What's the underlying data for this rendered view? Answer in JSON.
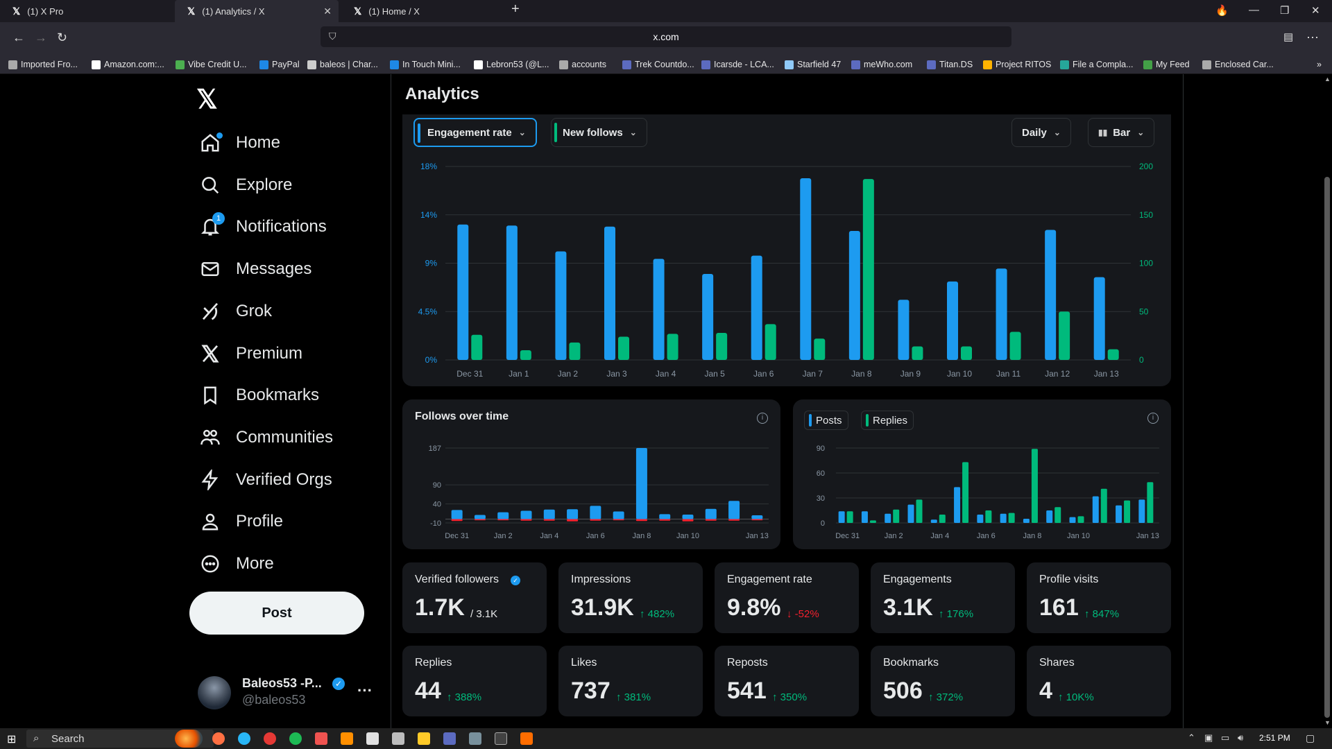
{
  "browser": {
    "tabs": [
      {
        "label": "(1) X Pro"
      },
      {
        "label": "(1) Analytics / X"
      },
      {
        "label": "(1) Home / X"
      }
    ],
    "url": "x.com",
    "bookmarks": [
      {
        "label": "Imported Fro...",
        "color": "#aaaaaa"
      },
      {
        "label": "Amazon.com:...",
        "color": "#ffffff"
      },
      {
        "label": "Vibe Credit U...",
        "color": "#4caf50"
      },
      {
        "label": "PayPal",
        "color": "#1e88e5"
      },
      {
        "label": "baleos | Char...",
        "color": "#cccccc"
      },
      {
        "label": "In Touch Mini...",
        "color": "#1e88e5"
      },
      {
        "label": "Lebron53 (@L...",
        "color": "#ffffff"
      },
      {
        "label": "accounts",
        "color": "#aaaaaa"
      },
      {
        "label": "Trek Countdo...",
        "color": "#5c6bc0"
      },
      {
        "label": "Icarsde - LCA...",
        "color": "#5c6bc0"
      },
      {
        "label": "Starfield 47",
        "color": "#90caf9"
      },
      {
        "label": "meWho.com",
        "color": "#5c6bc0"
      },
      {
        "label": "Titan.DS",
        "color": "#5c6bc0"
      },
      {
        "label": "Project RITOS",
        "color": "#ffb300"
      },
      {
        "label": "File a Compla...",
        "color": "#26a69a"
      },
      {
        "label": "My Feed",
        "color": "#43a047"
      },
      {
        "label": "Enclosed Car...",
        "color": "#aaaaaa"
      }
    ]
  },
  "sidebar": {
    "items": [
      {
        "label": "Home",
        "icon": "home-icon"
      },
      {
        "label": "Explore",
        "icon": "search-icon"
      },
      {
        "label": "Notifications",
        "icon": "bell-icon",
        "badge": "1"
      },
      {
        "label": "Messages",
        "icon": "mail-icon"
      },
      {
        "label": "Grok",
        "icon": "grok-icon"
      },
      {
        "label": "Premium",
        "icon": "x-premium-icon"
      },
      {
        "label": "Bookmarks",
        "icon": "bookmark-icon"
      },
      {
        "label": "Communities",
        "icon": "communities-icon"
      },
      {
        "label": "Verified Orgs",
        "icon": "lightning-icon"
      },
      {
        "label": "Profile",
        "icon": "person-icon"
      },
      {
        "label": "More",
        "icon": "more-circle-icon"
      }
    ],
    "post_label": "Post",
    "profile": {
      "name": "Baleos53 -P...",
      "handle": "@baleos53"
    }
  },
  "page": {
    "title": "Analytics",
    "controls": {
      "metric1": "Engagement rate",
      "metric2": "New follows",
      "interval": "Daily",
      "chart_type": "Bar"
    }
  },
  "colors": {
    "blue": "#1d9bf0",
    "green": "#00ba7c",
    "red": "#f4212e"
  },
  "chart_data": [
    {
      "type": "bar",
      "categories": [
        "Dec 31",
        "Jan 1",
        "Jan 2",
        "Jan 3",
        "Jan 4",
        "Jan 5",
        "Jan 6",
        "Jan 7",
        "Jan 8",
        "Jan 9",
        "Jan 10",
        "Jan 11",
        "Jan 12",
        "Jan 13"
      ],
      "left_axis": {
        "ticks": [
          "18%",
          "14%",
          "9%",
          "4.5%",
          "0%"
        ],
        "ylim": [
          0,
          18
        ]
      },
      "right_axis": {
        "ticks": [
          "200",
          "150",
          "100",
          "50",
          "0"
        ],
        "ylim": [
          0,
          200
        ]
      },
      "series": [
        {
          "values": [
            12.6,
            12.5,
            10.1,
            12.4,
            9.4,
            8.0,
            9.7,
            16.9,
            12.0,
            5.6,
            7.3,
            8.5,
            12.1,
            7.7
          ],
          "axis": "left",
          "color": "#1d9bf0"
        },
        {
          "values": [
            26,
            10,
            18,
            24,
            27,
            28,
            37,
            22,
            187,
            14,
            14,
            29,
            50,
            11
          ],
          "axis": "right",
          "color": "#00ba7c"
        }
      ]
    },
    {
      "type": "bar",
      "title": "Follows over time",
      "categories": [
        "Dec 31",
        "Jan 1",
        "Jan 2",
        "Jan 3",
        "Jan 4",
        "Jan 5",
        "Jan 6",
        "Jan 7",
        "Jan 8",
        "Jan 9",
        "Jan 10",
        "Jan 11",
        "Jan 12",
        "Jan 13"
      ],
      "x_ticks": [
        "Dec 31",
        "Jan 2",
        "Jan 4",
        "Jan 6",
        "Jan 8",
        "Jan 10",
        "Jan 13"
      ],
      "y_ticks": [
        "187",
        "90",
        "40",
        "-10"
      ],
      "ylim": [
        -10,
        187
      ],
      "series": [
        {
          "values": [
            24,
            11,
            18,
            22,
            25,
            26,
            35,
            20,
            187,
            13,
            12,
            27,
            48,
            10
          ],
          "color": "#1d9bf0"
        },
        {
          "values": [
            -5,
            -3,
            -3,
            -4,
            -4,
            -6,
            -4,
            -3,
            -5,
            -4,
            -6,
            -4,
            -4,
            -3
          ],
          "color": "#f4212e"
        }
      ]
    },
    {
      "type": "bar",
      "categories": [
        "Dec 31",
        "Jan 1",
        "Jan 2",
        "Jan 3",
        "Jan 4",
        "Jan 5",
        "Jan 6",
        "Jan 7",
        "Jan 8",
        "Jan 9",
        "Jan 10",
        "Jan 11",
        "Jan 12",
        "Jan 13"
      ],
      "x_ticks": [
        "Dec 31",
        "Jan 2",
        "Jan 4",
        "Jan 6",
        "Jan 8",
        "Jan 10",
        "Jan 13"
      ],
      "y_ticks": [
        "90",
        "60",
        "30",
        "0"
      ],
      "ylim": [
        0,
        90
      ],
      "series": [
        {
          "name": "Posts",
          "values": [
            14,
            14,
            11,
            22,
            4,
            43,
            10,
            11,
            5,
            15,
            7,
            32,
            21,
            28
          ],
          "color": "#1d9bf0"
        },
        {
          "name": "Replies",
          "values": [
            14,
            3,
            16,
            28,
            10,
            73,
            15,
            12,
            89,
            19,
            8,
            41,
            27,
            49
          ],
          "color": "#00ba7c"
        }
      ]
    }
  ],
  "metrics": [
    {
      "title": "Verified followers",
      "value": "1.7K",
      "sub": "/ 3.1K",
      "trend": "none"
    },
    {
      "title": "Impressions",
      "value": "31.9K",
      "sub": "↑ 482%",
      "trend": "up"
    },
    {
      "title": "Engagement rate",
      "value": "9.8%",
      "sub": "↓ -52%",
      "trend": "down"
    },
    {
      "title": "Engagements",
      "value": "3.1K",
      "sub": "↑ 176%",
      "trend": "up"
    },
    {
      "title": "Profile visits",
      "value": "161",
      "sub": "↑ 847%",
      "trend": "up"
    },
    {
      "title": "Replies",
      "value": "44",
      "sub": "↑ 388%",
      "trend": "up"
    },
    {
      "title": "Likes",
      "value": "737",
      "sub": "↑ 381%",
      "trend": "up"
    },
    {
      "title": "Reposts",
      "value": "541",
      "sub": "↑ 350%",
      "trend": "up"
    },
    {
      "title": "Bookmarks",
      "value": "506",
      "sub": "↑ 372%",
      "trend": "up"
    },
    {
      "title": "Shares",
      "value": "4",
      "sub": "↑ 10K%",
      "trend": "up"
    }
  ],
  "taskbar": {
    "search_label": "Search",
    "time": "2:51 PM"
  }
}
